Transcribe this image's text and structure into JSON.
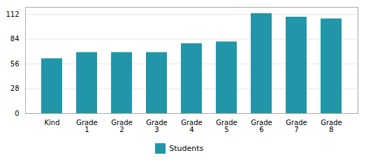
{
  "chart_data": {
    "type": "bar",
    "categories": [
      "Kind",
      "Grade\n1",
      "Grade\n2",
      "Grade\n3",
      "Grade\n4",
      "Grade\n5",
      "Grade\n6",
      "Grade\n7",
      "Grade\n8"
    ],
    "series": [
      {
        "name": "Students",
        "color": "#2196A8",
        "values": [
          62,
          69,
          69,
          69,
          79,
          81,
          113,
          109,
          107
        ]
      }
    ],
    "ylim": [
      0,
      120
    ],
    "yticks": [
      0,
      28,
      56,
      84,
      112
    ],
    "grid": true,
    "legend": "bottom"
  }
}
